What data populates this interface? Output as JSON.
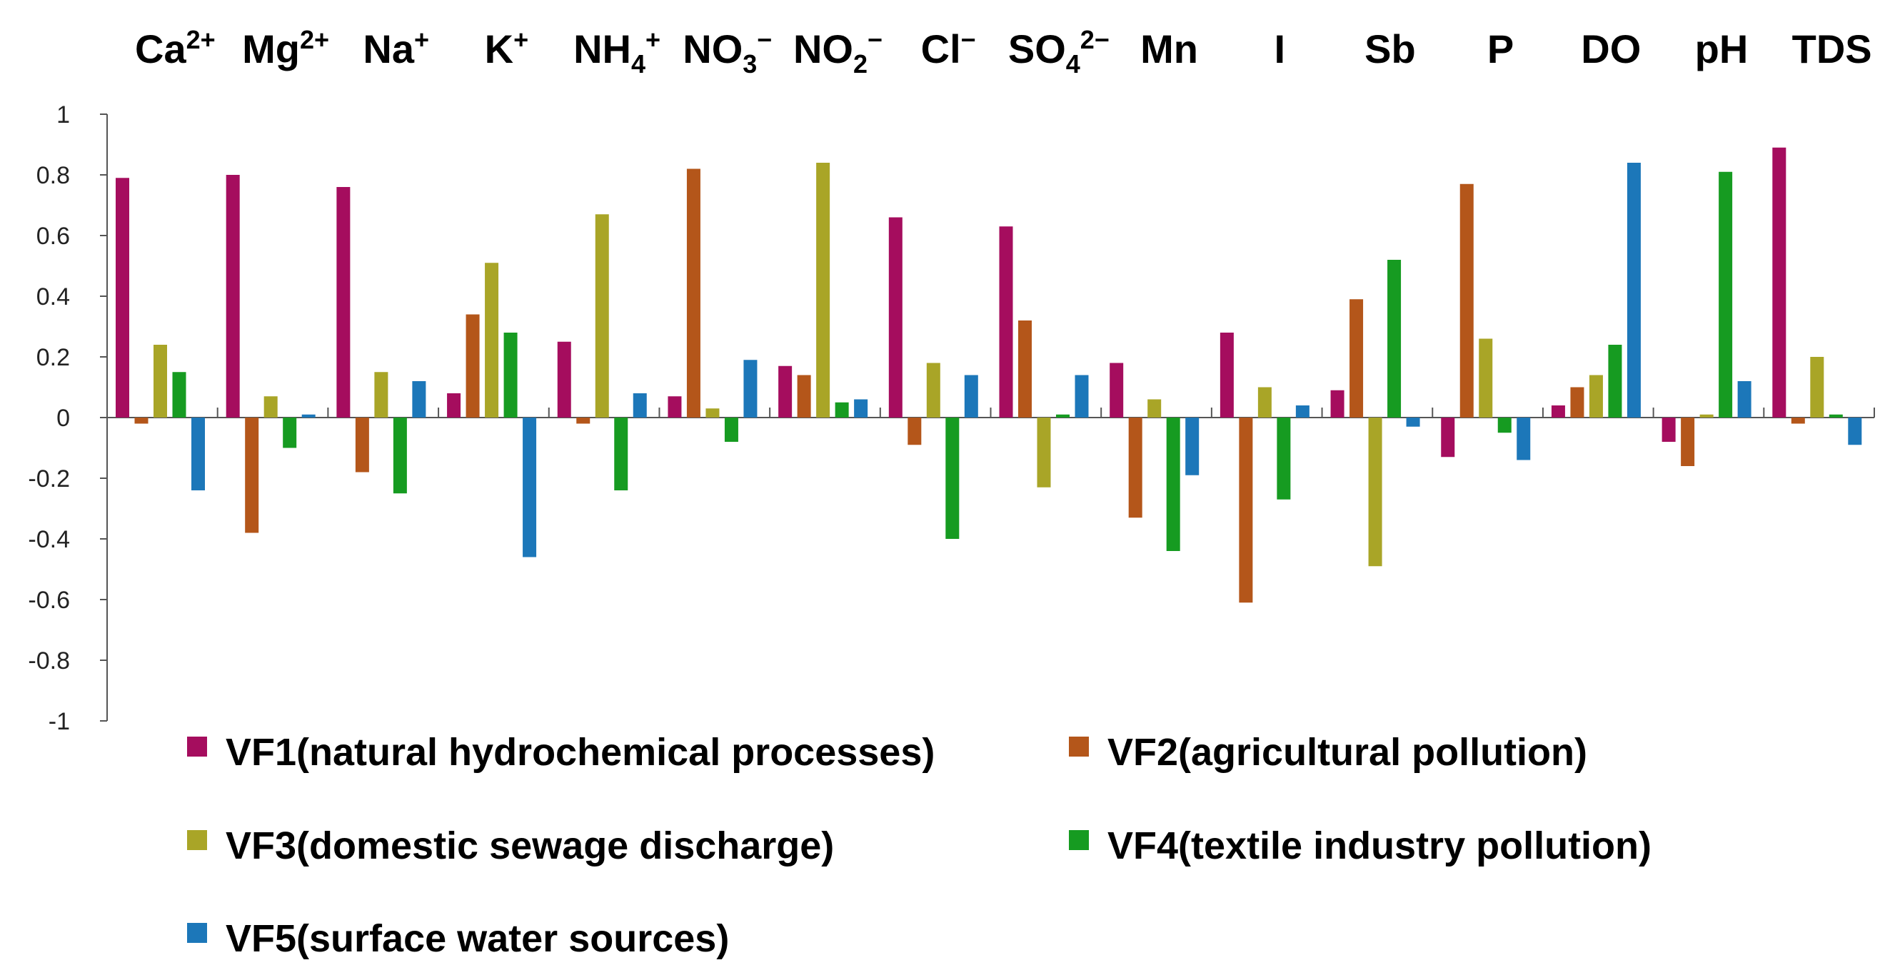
{
  "chart_data": {
    "type": "bar",
    "title": "",
    "xlabel": "",
    "ylabel": "",
    "ylim": [
      -1,
      1
    ],
    "yticks": [
      1,
      0.8,
      0.6,
      0.4,
      0.2,
      0,
      -0.2,
      -0.4,
      -0.6,
      -0.8,
      -1
    ],
    "ytick_labels": [
      "1",
      "0.8",
      "0.6",
      "0.4",
      "0.2",
      "0",
      "-0.2",
      "-0.4",
      "-0.6",
      "-0.8",
      "-1"
    ],
    "grid": false,
    "legend_position": "bottom",
    "categories": [
      {
        "id": "Ca",
        "base": "Ca",
        "sup": "2+",
        "sub": ""
      },
      {
        "id": "Mg",
        "base": "Mg",
        "sup": "2+",
        "sub": ""
      },
      {
        "id": "Na",
        "base": "Na",
        "sup": "+",
        "sub": ""
      },
      {
        "id": "K",
        "base": "K",
        "sup": "+",
        "sub": ""
      },
      {
        "id": "NH4",
        "base": "NH",
        "sub": "4",
        "sup": "+"
      },
      {
        "id": "NO3",
        "base": "NO",
        "sub": "3",
        "sup": "−"
      },
      {
        "id": "NO2",
        "base": "NO",
        "sub": "2",
        "sup": "−"
      },
      {
        "id": "Cl",
        "base": "Cl",
        "sup": "−",
        "sub": ""
      },
      {
        "id": "SO4",
        "base": "SO",
        "sub": "4",
        "sup": "2−"
      },
      {
        "id": "Mn",
        "base": "Mn",
        "sup": "",
        "sub": ""
      },
      {
        "id": "I",
        "base": "I",
        "sup": "",
        "sub": ""
      },
      {
        "id": "Sb",
        "base": "Sb",
        "sup": "",
        "sub": ""
      },
      {
        "id": "P",
        "base": "P",
        "sup": "",
        "sub": ""
      },
      {
        "id": "DO",
        "base": "DO",
        "sup": "",
        "sub": ""
      },
      {
        "id": "pH",
        "base": "pH",
        "sup": "",
        "sub": ""
      },
      {
        "id": "TDS",
        "base": "TDS",
        "sup": "",
        "sub": ""
      }
    ],
    "series": [
      {
        "name": "VF1(natural hydrochemical processes)",
        "color": "#A50D5E",
        "values": [
          0.79,
          0.8,
          0.76,
          0.08,
          0.25,
          0.07,
          0.17,
          0.66,
          0.63,
          0.18,
          0.28,
          0.09,
          -0.13,
          0.04,
          -0.08,
          0.89
        ]
      },
      {
        "name": "VF2(agricultural pollution)",
        "color": "#B4561A",
        "values": [
          -0.02,
          -0.38,
          -0.18,
          0.34,
          -0.02,
          0.82,
          0.14,
          -0.09,
          0.32,
          -0.33,
          -0.61,
          0.39,
          0.77,
          0.1,
          -0.16,
          -0.02
        ]
      },
      {
        "name": "VF3(domestic sewage discharge)",
        "color": "#A9A527",
        "values": [
          0.24,
          0.07,
          0.15,
          0.51,
          0.67,
          0.03,
          0.84,
          0.18,
          -0.23,
          0.06,
          0.1,
          -0.49,
          0.26,
          0.14,
          0.01,
          0.2
        ]
      },
      {
        "name": "VF4(textile industry pollution)",
        "color": "#169B21",
        "values": [
          0.15,
          -0.1,
          -0.25,
          0.28,
          -0.24,
          -0.08,
          0.05,
          -0.4,
          0.01,
          -0.44,
          -0.27,
          0.52,
          -0.05,
          0.24,
          0.81,
          0.01
        ]
      },
      {
        "name": "VF5(surface water sources)",
        "color": "#1C77B9",
        "values": [
          -0.24,
          0.01,
          0.12,
          -0.46,
          0.08,
          0.19,
          0.06,
          0.14,
          0.14,
          -0.19,
          0.04,
          -0.03,
          -0.14,
          0.84,
          0.12,
          -0.09
        ]
      }
    ]
  }
}
